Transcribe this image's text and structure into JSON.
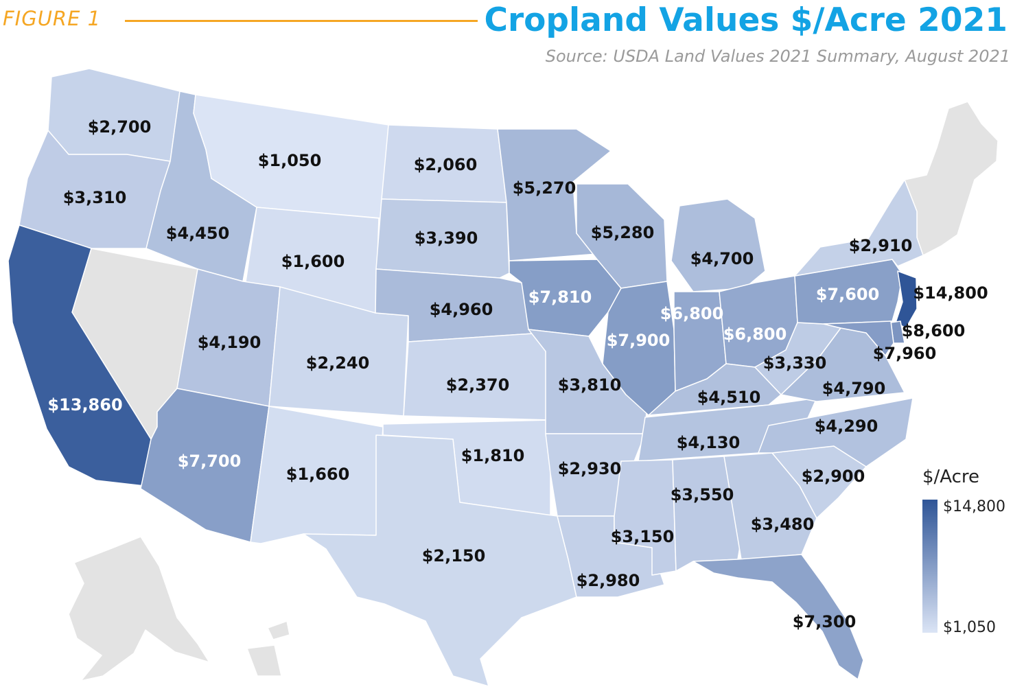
{
  "header": {
    "figure_label": "FIGURE 1",
    "title": "Cropland Values $/Acre 2021",
    "subtitle": "Source: USDA Land Values 2021 Summary, August 2021"
  },
  "legend": {
    "title": "$/Acre",
    "max_label": "$14,800",
    "min_label": "$1,050",
    "max_color": "#2f5597",
    "min_color": "#dbe4f5"
  },
  "colors": {
    "no_data": "#e3e3e3",
    "dark_text": "#111111",
    "light_text": "#ffffff"
  },
  "states": [
    {
      "id": "WA",
      "label": "$2,700",
      "value": 2700
    },
    {
      "id": "OR",
      "label": "$3,310",
      "value": 3310
    },
    {
      "id": "CA",
      "label": "$13,860",
      "value": 13860
    },
    {
      "id": "ID",
      "label": "$4,450",
      "value": 4450
    },
    {
      "id": "MT",
      "label": "$1,050",
      "value": 1050
    },
    {
      "id": "WY",
      "label": "$1,600",
      "value": 1600
    },
    {
      "id": "UT",
      "label": "$4,190",
      "value": 4190
    },
    {
      "id": "AZ",
      "label": "$7,700",
      "value": 7700
    },
    {
      "id": "CO",
      "label": "$2,240",
      "value": 2240
    },
    {
      "id": "NM",
      "label": "$1,660",
      "value": 1660
    },
    {
      "id": "ND",
      "label": "$2,060",
      "value": 2060
    },
    {
      "id": "SD",
      "label": "$3,390",
      "value": 3390
    },
    {
      "id": "NE",
      "label": "$4,960",
      "value": 4960
    },
    {
      "id": "KS",
      "label": "$2,370",
      "value": 2370
    },
    {
      "id": "OK",
      "label": "$1,810",
      "value": 1810
    },
    {
      "id": "TX",
      "label": "$2,150",
      "value": 2150
    },
    {
      "id": "MN",
      "label": "$5,270",
      "value": 5270
    },
    {
      "id": "IA",
      "label": "$7,810",
      "value": 7810
    },
    {
      "id": "MO",
      "label": "$3,810",
      "value": 3810
    },
    {
      "id": "AR",
      "label": "$2,930",
      "value": 2930
    },
    {
      "id": "LA",
      "label": "$2,980",
      "value": 2980
    },
    {
      "id": "WI",
      "label": "$5,280",
      "value": 5280
    },
    {
      "id": "IL",
      "label": "$7,900",
      "value": 7900
    },
    {
      "id": "MI",
      "label": "$4,700",
      "value": 4700
    },
    {
      "id": "IN",
      "label": "$6,800",
      "value": 6800
    },
    {
      "id": "OH",
      "label": "$6,800",
      "value": 6800
    },
    {
      "id": "KY",
      "label": "$4,510",
      "value": 4510
    },
    {
      "id": "TN",
      "label": "$4,130",
      "value": 4130
    },
    {
      "id": "MS",
      "label": "$3,150",
      "value": 3150
    },
    {
      "id": "AL",
      "label": "$3,550",
      "value": 3550
    },
    {
      "id": "GA",
      "label": "$3,480",
      "value": 3480
    },
    {
      "id": "FL",
      "label": "$7,300",
      "value": 7300
    },
    {
      "id": "SC",
      "label": "$2,900",
      "value": 2900
    },
    {
      "id": "NC",
      "label": "$4,290",
      "value": 4290
    },
    {
      "id": "VA",
      "label": "$4,790",
      "value": 4790
    },
    {
      "id": "WV",
      "label": "$3,330",
      "value": 3330
    },
    {
      "id": "PA",
      "label": "$7,600",
      "value": 7600
    },
    {
      "id": "NY",
      "label": "$2,910",
      "value": 2910
    },
    {
      "id": "NJ",
      "label": "$14,800",
      "value": 14800
    },
    {
      "id": "DE",
      "label": "$8,600",
      "value": 8600
    },
    {
      "id": "MD",
      "label": "$7,960",
      "value": 7960
    }
  ]
}
